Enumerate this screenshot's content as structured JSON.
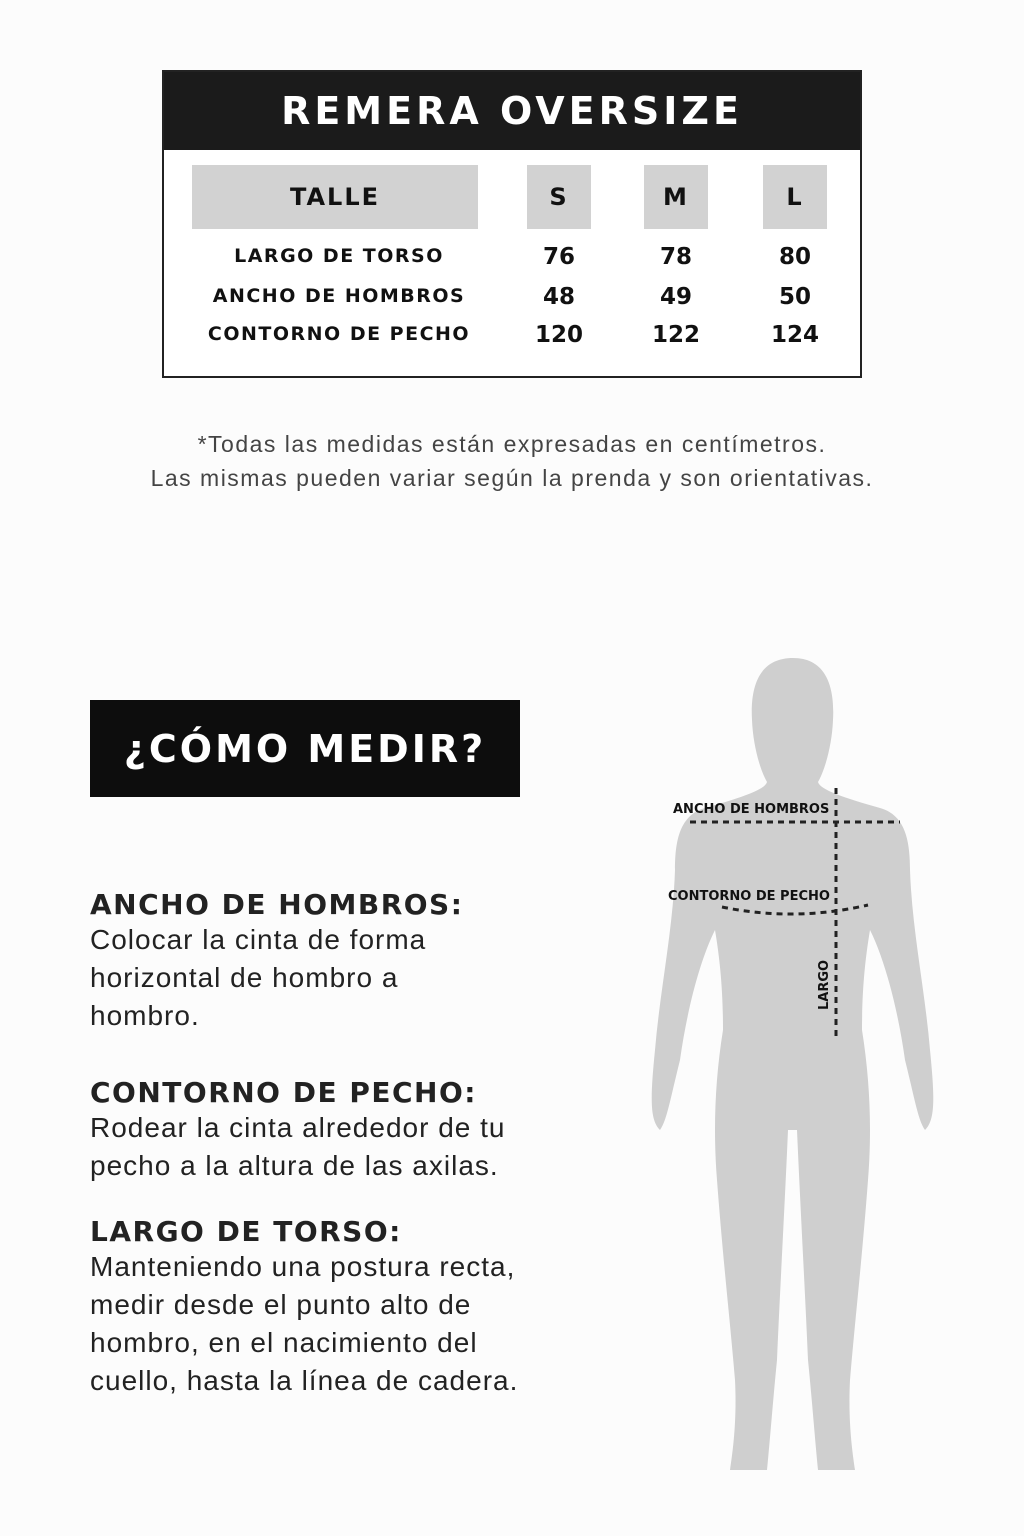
{
  "table": {
    "title": "REMERA OVERSIZE",
    "size_header": "TALLE",
    "sizes": [
      "S",
      "M",
      "L"
    ],
    "rows": [
      {
        "label": "LARGO DE TORSO",
        "values": [
          "76",
          "78",
          "80"
        ]
      },
      {
        "label": "ANCHO DE HOMBROS",
        "values": [
          "48",
          "49",
          "50"
        ]
      },
      {
        "label": "CONTORNO DE PECHO",
        "values": [
          "120",
          "122",
          "124"
        ]
      }
    ]
  },
  "note": {
    "line1": "*Todas las medidas están expresadas en centímetros.",
    "line2": "Las mismas pueden variar según la prenda y son orientativas."
  },
  "how_to": {
    "title": "¿CÓMO MEDIR?",
    "sections": [
      {
        "heading": "ANCHO DE HOMBROS",
        "text": "Colocar la cinta de forma horizontal de hombro a hombro."
      },
      {
        "heading": "CONTORNO DE PECHO",
        "text": "Rodear la cinta alrededor de tu pecho a la altura de las axilas."
      },
      {
        "heading": "LARGO DE TORSO",
        "text": "Manteniendo una postura recta, medir desde el punto alto de hombro, en el nacimiento del cuello, hasta la línea de cadera."
      }
    ]
  },
  "figure": {
    "label_shoulders": "ANCHO DE HOMBROS",
    "label_chest": "CONTORNO DE PECHO",
    "label_length": "LARGO",
    "body_color": "#cfcfcf"
  }
}
